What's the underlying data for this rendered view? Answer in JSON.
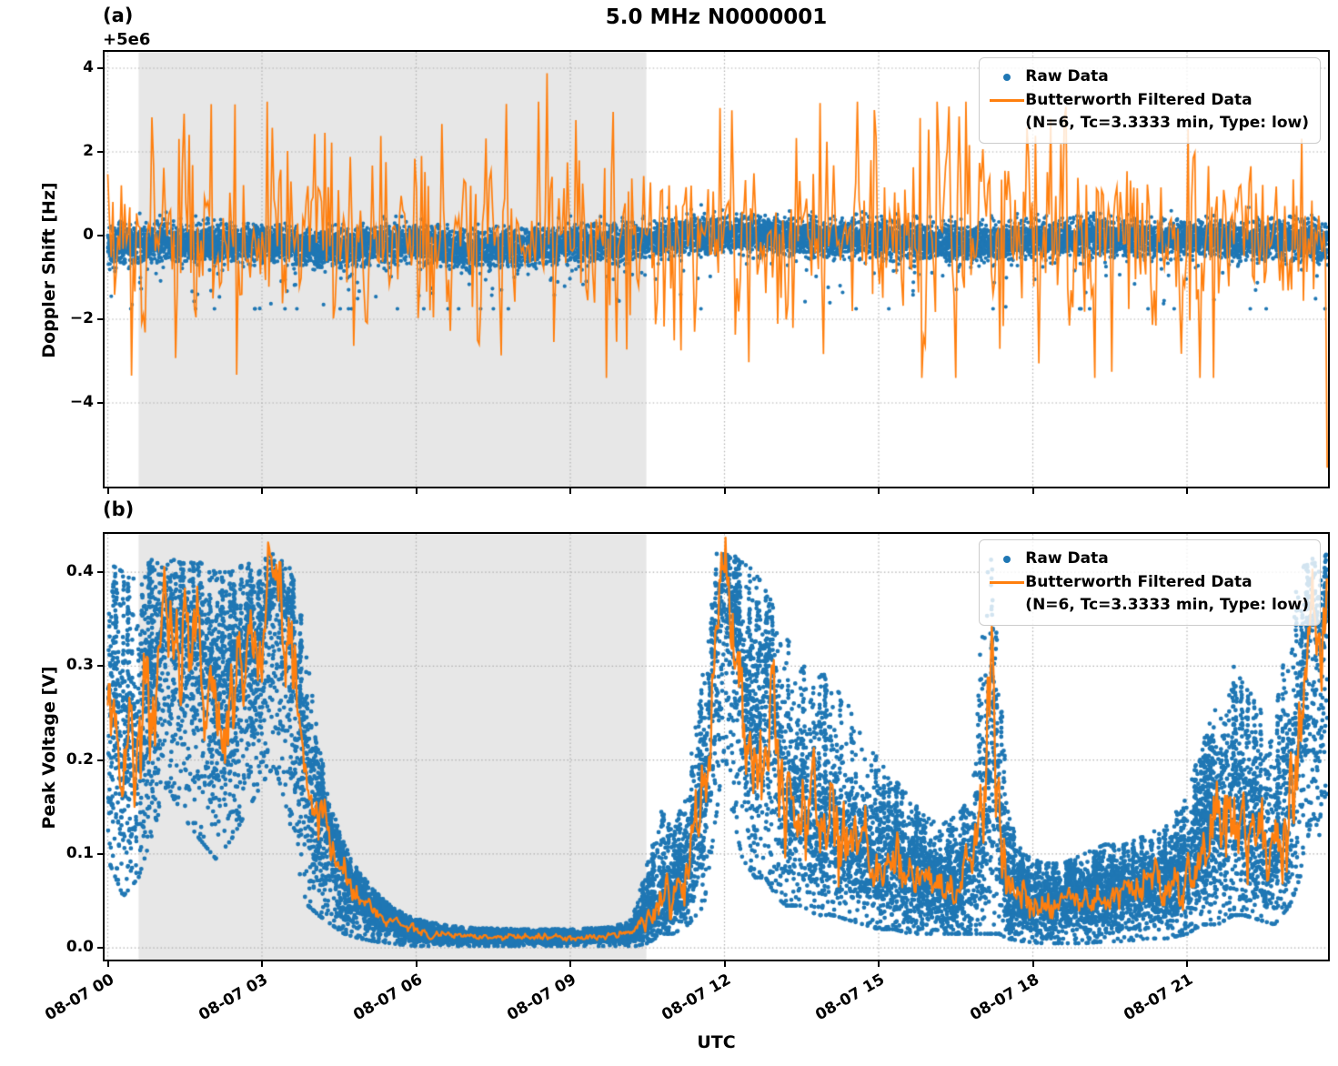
{
  "figure": {
    "title": "5.0 MHz N0000001",
    "xlabel": "UTC",
    "colors": {
      "raw": "#1f77b4",
      "filtered": "#ff7f0e",
      "shaded_region": "#e7e7e7",
      "grid": "#b0b0b0",
      "spine": "#000000",
      "legend_bg": "rgba(255,255,255,0.8)",
      "legend_border": "#cccccc"
    }
  },
  "chart_data": [
    {
      "panel": "(a)",
      "type": "scatter+line",
      "title": "5.0 MHz N0000001",
      "ylabel": "Doppler Shift [Hz]",
      "y_offset_label": "+5e6",
      "ylim": [
        -6.0,
        4.391
      ],
      "yticks": [
        4,
        2,
        0,
        -2,
        -4
      ],
      "ytick_labels": [
        "4",
        "2",
        "0",
        "−2",
        "−4"
      ],
      "xlim_hours": [
        -0.062,
        23.743
      ],
      "xticks_hours": [
        0,
        3,
        6,
        9,
        12,
        15,
        18,
        21
      ],
      "xtick_labels": [
        "08-07 00",
        "08-07 03",
        "08-07 06",
        "08-07 09",
        "08-07 12",
        "08-07 15",
        "08-07 18",
        "08-07 21"
      ],
      "grid": "dotted",
      "shaded_region_hours": [
        0.6,
        10.48
      ],
      "legend_position": "upper right",
      "legend": {
        "raw_label": "Raw Data",
        "filtered_label_line1": "Butterworth Filtered Data",
        "filtered_label_line2": "(N=6, Tc=3.3333 min, Type: low)"
      },
      "series": {
        "raw": {
          "kind": "scatter",
          "color": "#1f77b4",
          "n_points": 14000,
          "seed": 7,
          "sigma": 0.21,
          "outlier_rate": 0.02,
          "outlier_scale": 0.45,
          "clip": [
            -1.75,
            0.85
          ],
          "center_knots": [
            [
              0,
              -0.25
            ],
            [
              1,
              -0.15
            ],
            [
              2,
              -0.2
            ],
            [
              3,
              -0.15
            ],
            [
              4,
              -0.3
            ],
            [
              5,
              -0.25
            ],
            [
              6,
              -0.15
            ],
            [
              7,
              -0.35
            ],
            [
              8,
              -0.3
            ],
            [
              9,
              -0.2
            ],
            [
              10,
              -0.2
            ],
            [
              11,
              -0.05
            ],
            [
              12,
              0.05
            ],
            [
              13,
              0.0
            ],
            [
              14,
              -0.1
            ],
            [
              15,
              -0.05
            ],
            [
              16,
              -0.15
            ],
            [
              17,
              -0.2
            ],
            [
              18,
              -0.1
            ],
            [
              19,
              -0.05
            ],
            [
              20,
              -0.1
            ],
            [
              21,
              -0.05
            ],
            [
              22,
              -0.15
            ],
            [
              23,
              -0.1
            ],
            [
              23.73,
              -0.2
            ]
          ]
        },
        "filtered": {
          "kind": "line",
          "color": "#ff7f0e",
          "dt_hours": 0.033,
          "t_max": 23.73,
          "seed": 12,
          "sigma": 0.95,
          "tail_rate": 0.22,
          "tail_mult": 1.8,
          "pos_skew": 1.1,
          "clip": [
            -3.4,
            3.2
          ],
          "extreme_points": [
            [
              0.45,
              -3.35
            ],
            [
              8.55,
              3.88
            ],
            [
              11.9,
              3.05
            ],
            [
              14.9,
              3.0
            ],
            [
              23.73,
              -5.55
            ]
          ]
        }
      }
    },
    {
      "panel": "(b)",
      "type": "scatter+line",
      "ylabel": "Peak Voltage [V]",
      "ylim": [
        -0.0124,
        0.4407
      ],
      "yticks": [
        0.0,
        0.1,
        0.2,
        0.3,
        0.4
      ],
      "ytick_labels": [
        "0.0",
        "0.1",
        "0.2",
        "0.3",
        "0.4"
      ],
      "xlim_hours": [
        -0.062,
        23.743
      ],
      "xticks_hours": [
        0,
        3,
        6,
        9,
        12,
        15,
        18,
        21
      ],
      "xtick_labels": [
        "08-07 00",
        "08-07 03",
        "08-07 06",
        "08-07 09",
        "08-07 12",
        "08-07 15",
        "08-07 18",
        "08-07 21"
      ],
      "grid": "dotted",
      "shaded_region_hours": [
        0.6,
        10.48
      ],
      "legend_position": "upper right",
      "legend": {
        "raw_label": "Raw Data",
        "filtered_label_line1": "Butterworth Filtered Data",
        "filtered_label_line2": "(N=6, Tc=3.3333 min, Type: low)"
      },
      "envelope_knots_t_lo_hi_filt": [
        [
          0.0,
          0.1,
          0.41,
          0.26
        ],
        [
          0.3,
          0.06,
          0.4,
          0.19
        ],
        [
          0.6,
          0.08,
          0.4,
          0.22
        ],
        [
          1.0,
          0.15,
          0.42,
          0.31
        ],
        [
          1.15,
          0.18,
          0.42,
          0.36
        ],
        [
          1.4,
          0.15,
          0.41,
          0.32
        ],
        [
          1.8,
          0.12,
          0.41,
          0.31
        ],
        [
          2.1,
          0.1,
          0.4,
          0.26
        ],
        [
          2.4,
          0.12,
          0.4,
          0.28
        ],
        [
          2.7,
          0.15,
          0.41,
          0.3
        ],
        [
          3.0,
          0.18,
          0.42,
          0.32
        ],
        [
          3.25,
          0.2,
          0.42,
          0.38
        ],
        [
          3.5,
          0.15,
          0.41,
          0.34
        ],
        [
          3.7,
          0.08,
          0.38,
          0.25
        ],
        [
          3.9,
          0.05,
          0.3,
          0.18
        ],
        [
          4.1,
          0.04,
          0.22,
          0.15
        ],
        [
          4.35,
          0.03,
          0.15,
          0.11
        ],
        [
          4.6,
          0.02,
          0.11,
          0.08
        ],
        [
          4.9,
          0.015,
          0.08,
          0.055
        ],
        [
          5.2,
          0.012,
          0.06,
          0.04
        ],
        [
          5.5,
          0.01,
          0.045,
          0.03
        ],
        [
          5.8,
          0.008,
          0.035,
          0.022
        ],
        [
          6.2,
          0.006,
          0.028,
          0.016
        ],
        [
          6.6,
          0.005,
          0.024,
          0.013
        ],
        [
          7.0,
          0.005,
          0.022,
          0.012
        ],
        [
          8.0,
          0.004,
          0.02,
          0.011
        ],
        [
          9.0,
          0.004,
          0.02,
          0.011
        ],
        [
          9.8,
          0.005,
          0.022,
          0.012
        ],
        [
          10.2,
          0.006,
          0.03,
          0.016
        ],
        [
          10.5,
          0.01,
          0.09,
          0.03
        ],
        [
          10.8,
          0.02,
          0.15,
          0.055
        ],
        [
          11.0,
          0.02,
          0.12,
          0.05
        ],
        [
          11.3,
          0.03,
          0.18,
          0.09
        ],
        [
          11.6,
          0.05,
          0.3,
          0.16
        ],
        [
          11.85,
          0.15,
          0.42,
          0.32
        ],
        [
          12.0,
          0.22,
          0.42,
          0.41
        ],
        [
          12.15,
          0.15,
          0.42,
          0.34
        ],
        [
          12.35,
          0.1,
          0.41,
          0.28
        ],
        [
          12.6,
          0.08,
          0.4,
          0.21
        ],
        [
          12.8,
          0.08,
          0.38,
          0.27
        ],
        [
          13.0,
          0.06,
          0.36,
          0.22
        ],
        [
          13.2,
          0.05,
          0.33,
          0.14
        ],
        [
          13.5,
          0.05,
          0.3,
          0.17
        ],
        [
          13.8,
          0.04,
          0.3,
          0.12
        ],
        [
          14.1,
          0.04,
          0.28,
          0.14
        ],
        [
          14.4,
          0.035,
          0.26,
          0.11
        ],
        [
          14.7,
          0.03,
          0.22,
          0.1
        ],
        [
          15.0,
          0.025,
          0.2,
          0.085
        ],
        [
          15.3,
          0.025,
          0.18,
          0.095
        ],
        [
          15.6,
          0.02,
          0.16,
          0.075
        ],
        [
          15.9,
          0.02,
          0.14,
          0.07
        ],
        [
          16.2,
          0.02,
          0.13,
          0.06
        ],
        [
          16.5,
          0.02,
          0.14,
          0.065
        ],
        [
          16.8,
          0.02,
          0.16,
          0.08
        ],
        [
          17.05,
          0.02,
          0.38,
          0.13
        ],
        [
          17.2,
          0.02,
          0.42,
          0.26
        ],
        [
          17.35,
          0.02,
          0.3,
          0.12
        ],
        [
          17.5,
          0.015,
          0.15,
          0.06
        ],
        [
          17.8,
          0.012,
          0.1,
          0.05
        ],
        [
          18.2,
          0.01,
          0.09,
          0.045
        ],
        [
          18.6,
          0.01,
          0.09,
          0.05
        ],
        [
          19.0,
          0.01,
          0.1,
          0.05
        ],
        [
          19.4,
          0.012,
          0.11,
          0.055
        ],
        [
          19.8,
          0.012,
          0.11,
          0.06
        ],
        [
          20.2,
          0.015,
          0.12,
          0.065
        ],
        [
          20.6,
          0.015,
          0.13,
          0.07
        ],
        [
          21.0,
          0.02,
          0.16,
          0.08
        ],
        [
          21.3,
          0.03,
          0.22,
          0.11
        ],
        [
          21.6,
          0.03,
          0.26,
          0.12
        ],
        [
          21.9,
          0.04,
          0.3,
          0.16
        ],
        [
          22.1,
          0.04,
          0.28,
          0.13
        ],
        [
          22.4,
          0.035,
          0.26,
          0.12
        ],
        [
          22.7,
          0.03,
          0.24,
          0.1
        ],
        [
          23.0,
          0.05,
          0.35,
          0.15
        ],
        [
          23.2,
          0.08,
          0.4,
          0.25
        ],
        [
          23.45,
          0.15,
          0.42,
          0.37
        ],
        [
          23.6,
          0.12,
          0.42,
          0.3
        ],
        [
          23.73,
          0.15,
          0.42,
          0.36
        ]
      ],
      "series": {
        "raw": {
          "kind": "scatter",
          "color": "#1f77b4",
          "n_points": 15000,
          "seed": 21,
          "up_frac": 0.4,
          "down_frac": 0.55,
          "low_outlier_rate": 0.012,
          "n_bursts": 240,
          "burst_size": 13,
          "v_min": 0.002
        },
        "filtered": {
          "kind": "line",
          "color": "#ff7f0e",
          "dt_hours": 0.02,
          "t_max": 23.73,
          "seed": 33,
          "wiggle_frac": 0.11,
          "smooth": 0.6
        }
      }
    }
  ]
}
